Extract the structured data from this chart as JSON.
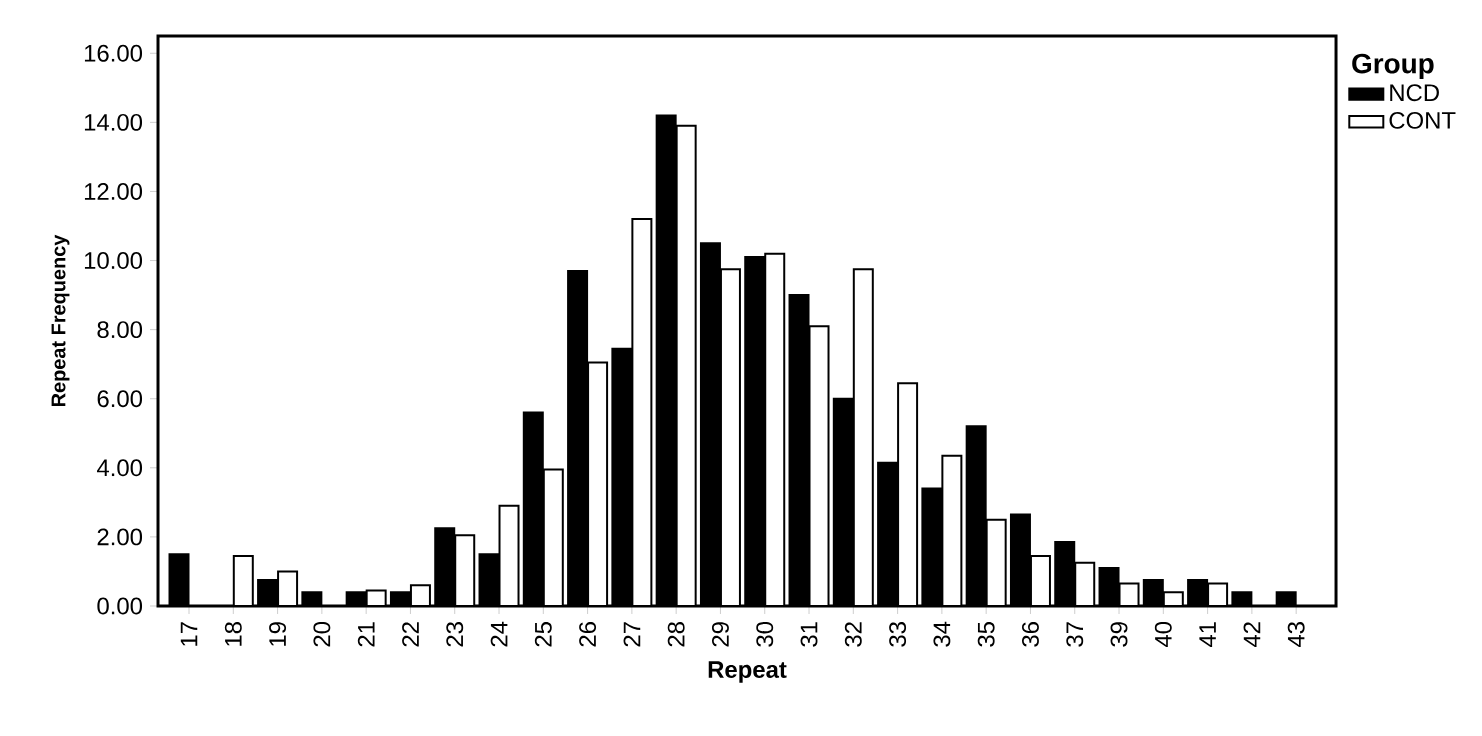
{
  "chart_data": {
    "type": "bar",
    "xlabel": "Repeat",
    "ylabel": "Repeat Frequency",
    "legend_title": "Group",
    "categories": [
      "17",
      "18",
      "19",
      "20",
      "21",
      "22",
      "23",
      "24",
      "25",
      "26",
      "27",
      "28",
      "29",
      "30",
      "31",
      "32",
      "33",
      "34",
      "35",
      "36",
      "37",
      "39",
      "40",
      "41",
      "42",
      "43"
    ],
    "series": [
      {
        "name": "NCD",
        "color": "#000000",
        "values": [
          1.5,
          null,
          0.75,
          0.4,
          0.4,
          0.4,
          2.25,
          1.5,
          5.6,
          9.7,
          7.45,
          14.2,
          10.5,
          10.1,
          9.0,
          6.0,
          4.15,
          3.4,
          5.2,
          2.65,
          1.85,
          1.1,
          0.75,
          0.75,
          0.4,
          0.4
        ]
      },
      {
        "name": "CONT",
        "color": "#ffffff",
        "values": [
          null,
          1.45,
          1.0,
          null,
          0.45,
          0.6,
          2.05,
          2.9,
          3.95,
          7.05,
          11.2,
          13.9,
          9.75,
          10.2,
          8.1,
          9.75,
          6.45,
          4.35,
          2.5,
          1.45,
          1.25,
          0.65,
          0.4,
          0.65,
          null,
          null
        ]
      }
    ],
    "ylim": [
      0,
      16.5
    ],
    "yticks": [
      {
        "value": 0,
        "label": "0.00"
      },
      {
        "value": 2,
        "label": "2.00"
      },
      {
        "value": 4,
        "label": "4.00"
      },
      {
        "value": 6,
        "label": "6.00"
      },
      {
        "value": 8,
        "label": "8.00"
      },
      {
        "value": 10,
        "label": "10.00"
      },
      {
        "value": 12,
        "label": "12.00"
      },
      {
        "value": 14,
        "label": "14.00"
      },
      {
        "value": 16,
        "label": "16.00"
      }
    ],
    "grid": false,
    "legend": "right"
  }
}
